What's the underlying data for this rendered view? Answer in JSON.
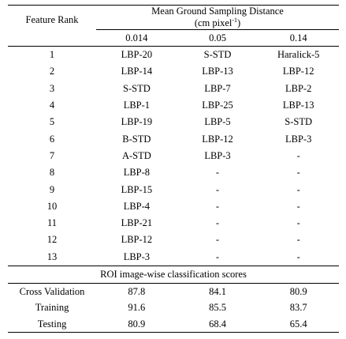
{
  "header": {
    "group_title": "Mean Ground Sampling Distance",
    "group_unit_prefix": "(cm pixel",
    "group_unit_sup": "-1",
    "group_unit_suffix": ")",
    "rank_label": "Feature Rank",
    "columns": [
      "0.014",
      "0.05",
      "0.14"
    ]
  },
  "rows": [
    {
      "rank": "1",
      "values": [
        "LBP-20",
        "S-STD",
        "Haralick-5"
      ]
    },
    {
      "rank": "2",
      "values": [
        "LBP-14",
        "LBP-13",
        "LBP-12"
      ]
    },
    {
      "rank": "3",
      "values": [
        "S-STD",
        "LBP-7",
        "LBP-2"
      ]
    },
    {
      "rank": "4",
      "values": [
        "LBP-1",
        "LBP-25",
        "LBP-13"
      ]
    },
    {
      "rank": "5",
      "values": [
        "LBP-19",
        "LBP-5",
        "S-STD"
      ]
    },
    {
      "rank": "6",
      "values": [
        "B-STD",
        "LBP-12",
        "LBP-3"
      ]
    },
    {
      "rank": "7",
      "values": [
        "A-STD",
        "LBP-3",
        "-"
      ]
    },
    {
      "rank": "8",
      "values": [
        "LBP-8",
        "-",
        "-"
      ]
    },
    {
      "rank": "9",
      "values": [
        "LBP-15",
        "-",
        "-"
      ]
    },
    {
      "rank": "10",
      "values": [
        "LBP-4",
        "-",
        "-"
      ]
    },
    {
      "rank": "11",
      "values": [
        "LBP-21",
        "-",
        "-"
      ]
    },
    {
      "rank": "12",
      "values": [
        "LBP-12",
        "-",
        "-"
      ]
    },
    {
      "rank": "13",
      "values": [
        "LBP-3",
        "-",
        "-"
      ]
    }
  ],
  "section_title": "ROI image-wise classification scores",
  "scores": [
    {
      "label": "Cross Validation",
      "values": [
        "87.8",
        "84.1",
        "80.9"
      ]
    },
    {
      "label": "Training",
      "values": [
        "91.6",
        "85.5",
        "83.7"
      ]
    },
    {
      "label": "Testing",
      "values": [
        "80.9",
        "68.4",
        "65.4"
      ]
    }
  ]
}
